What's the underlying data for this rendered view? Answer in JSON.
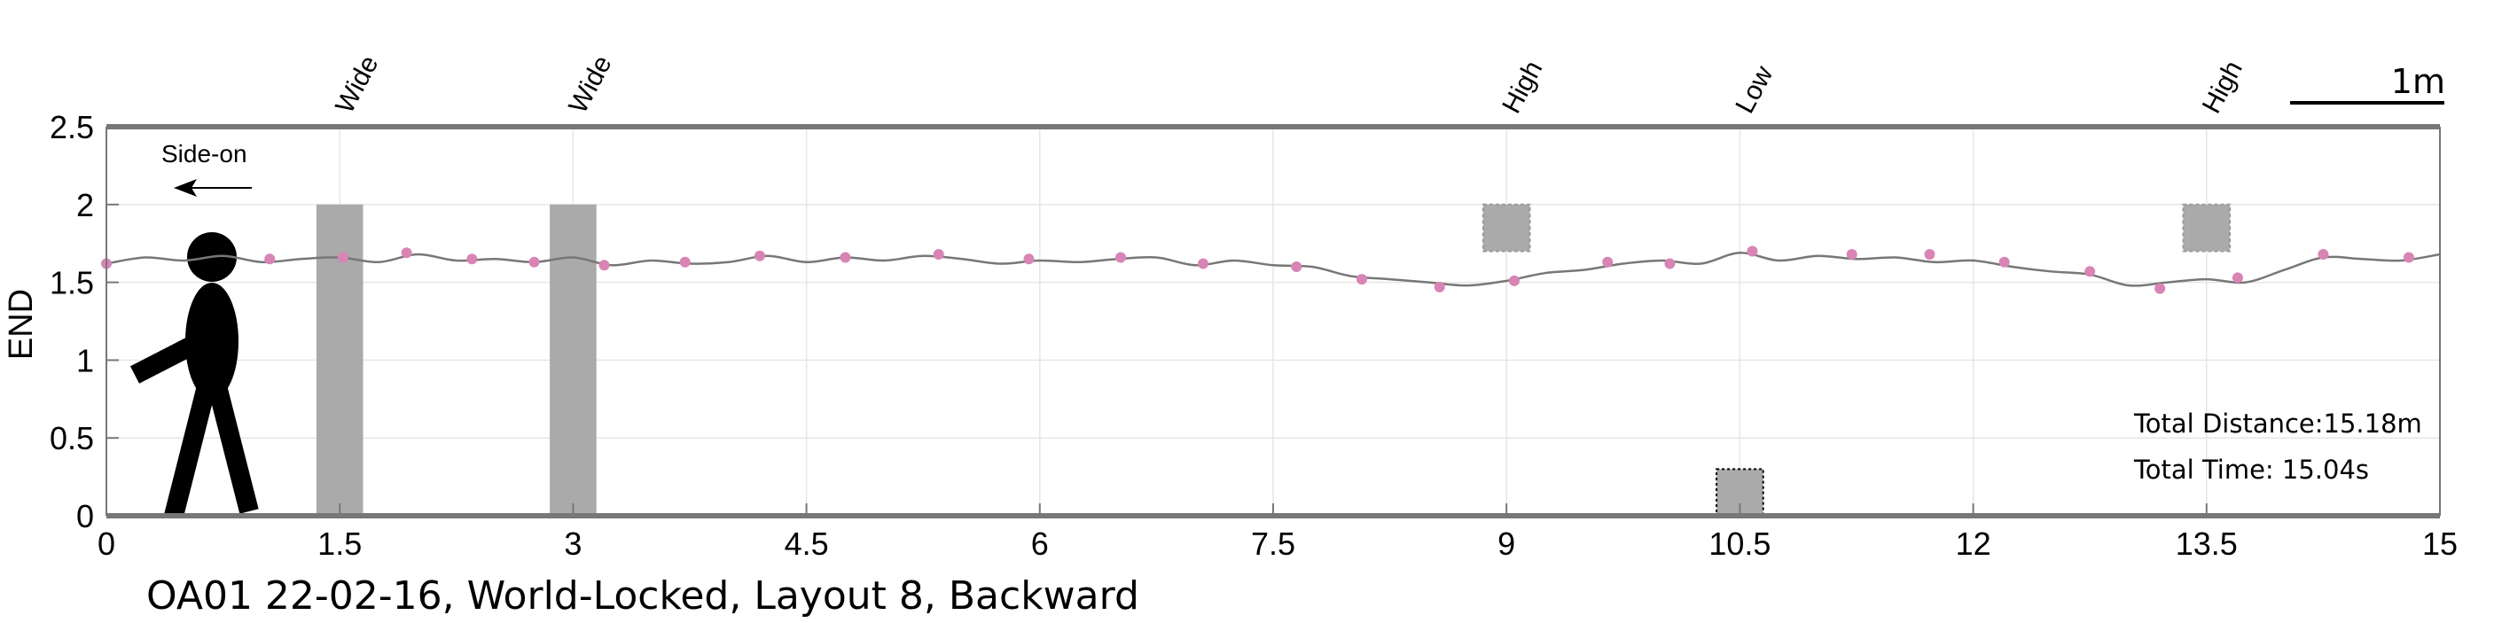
{
  "chart_data": {
    "type": "line",
    "xlabel": "",
    "ylabel": "END",
    "xlim": [
      0,
      15
    ],
    "ylim": [
      0,
      2.5
    ],
    "x_ticks": [
      "0",
      "1.5",
      "3",
      "4.5",
      "6",
      "7.5",
      "9",
      "10.5",
      "12",
      "13.5",
      "15"
    ],
    "y_ticks": [
      "0",
      "0.5",
      "1",
      "1.5",
      "2",
      "2.5"
    ],
    "grid": true,
    "path": {
      "x": [
        0,
        0.25,
        0.5,
        0.75,
        1.0,
        1.25,
        1.5,
        1.75,
        2.0,
        2.25,
        2.5,
        2.75,
        3.0,
        3.25,
        3.5,
        3.75,
        4.0,
        4.25,
        4.5,
        4.75,
        5.0,
        5.25,
        5.5,
        5.75,
        6.0,
        6.25,
        6.5,
        6.75,
        7.0,
        7.25,
        7.5,
        7.75,
        8.0,
        8.25,
        8.5,
        8.75,
        9.0,
        9.25,
        9.5,
        9.75,
        10.0,
        10.25,
        10.5,
        10.75,
        11.0,
        11.25,
        11.5,
        11.75,
        12.0,
        12.25,
        12.5,
        12.75,
        13.0,
        13.25,
        13.5,
        13.75,
        14.0,
        14.25,
        14.5,
        14.75,
        15.0
      ],
      "y": [
        1.62,
        1.66,
        1.64,
        1.67,
        1.63,
        1.65,
        1.66,
        1.63,
        1.68,
        1.64,
        1.65,
        1.63,
        1.66,
        1.61,
        1.64,
        1.62,
        1.63,
        1.67,
        1.63,
        1.66,
        1.64,
        1.67,
        1.65,
        1.62,
        1.64,
        1.63,
        1.65,
        1.66,
        1.61,
        1.64,
        1.61,
        1.6,
        1.54,
        1.52,
        1.5,
        1.48,
        1.51,
        1.56,
        1.58,
        1.62,
        1.64,
        1.62,
        1.69,
        1.64,
        1.67,
        1.65,
        1.66,
        1.63,
        1.64,
        1.6,
        1.57,
        1.55,
        1.48,
        1.5,
        1.52,
        1.5,
        1.58,
        1.66,
        1.65,
        1.64,
        1.68
      ]
    },
    "markers": {
      "x": [
        0.0,
        1.05,
        1.52,
        1.93,
        2.35,
        2.75,
        3.2,
        3.72,
        4.2,
        4.75,
        5.35,
        5.93,
        6.52,
        7.05,
        7.65,
        8.07,
        8.57,
        9.05,
        9.65,
        10.05,
        10.58,
        11.22,
        11.72,
        12.2,
        12.75,
        13.2,
        13.7,
        14.25,
        14.8
      ],
      "y": [
        1.62,
        1.65,
        1.66,
        1.69,
        1.65,
        1.63,
        1.61,
        1.63,
        1.67,
        1.66,
        1.68,
        1.65,
        1.66,
        1.62,
        1.6,
        1.52,
        1.47,
        1.51,
        1.63,
        1.62,
        1.7,
        1.68,
        1.68,
        1.63,
        1.57,
        1.46,
        1.53,
        1.68,
        1.66
      ]
    },
    "obstacles": [
      {
        "label": "Wide",
        "type": "bar",
        "x": [
          1.35,
          1.65
        ],
        "y": [
          0,
          2
        ]
      },
      {
        "label": "Wide",
        "type": "bar",
        "x": [
          2.85,
          3.15
        ],
        "y": [
          0,
          2
        ]
      },
      {
        "label": "High",
        "type": "box",
        "x": [
          8.85,
          9.15
        ],
        "y": [
          1.7,
          2
        ]
      },
      {
        "label": "Low",
        "type": "low",
        "x": [
          10.35,
          10.65
        ],
        "y": [
          0,
          0.3
        ]
      },
      {
        "label": "High",
        "type": "box",
        "x": [
          13.35,
          13.65
        ],
        "y": [
          1.7,
          2
        ]
      }
    ],
    "annotations": {
      "view": "Side-on",
      "scale_label": "1m",
      "total_distance": "Total Distance:15.18m",
      "total_time": "Total Time: 15.04s"
    },
    "caption": "OA01 22-02-16, World-Locked, Layout 8, Backward",
    "colors": {
      "path": "#777777",
      "marker": "#d884b5",
      "obstacle": "#aaaaaa",
      "axis": "#777777",
      "grid": "#e6e6e6",
      "figure": "#000000"
    }
  }
}
